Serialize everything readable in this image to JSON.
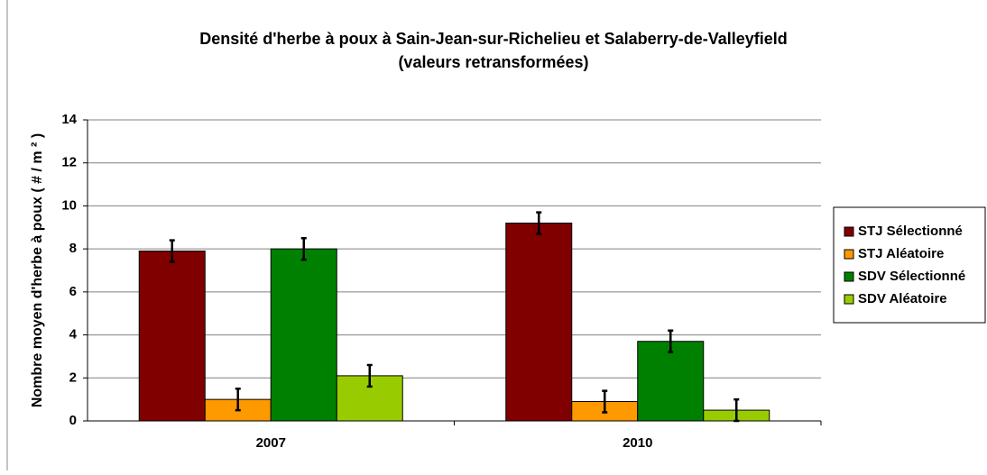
{
  "chart_data": {
    "type": "bar",
    "title": "Densité d'herbe à poux à Sain-Jean-sur-Richelieu et Salaberry-de-Valleyfield",
    "subtitle": "(valeurs retransformées)",
    "y_label": "Nombre moyen d'herbe à poux ( # / m ² )",
    "categories": [
      "2007",
      "2010"
    ],
    "series": [
      {
        "name": "STJ Sélectionné",
        "color": "#800000",
        "values": [
          7.9,
          9.2
        ],
        "errors": [
          0.5,
          0.5
        ]
      },
      {
        "name": "STJ Aléatoire",
        "color": "#ff9900",
        "values": [
          1.0,
          0.9
        ],
        "errors": [
          0.5,
          0.5
        ]
      },
      {
        "name": "SDV Sélectionné",
        "color": "#008000",
        "values": [
          8.0,
          3.7
        ],
        "errors": [
          0.5,
          0.5
        ]
      },
      {
        "name": "SDV Aléatoire",
        "color": "#99cc00",
        "values": [
          2.1,
          0.5
        ],
        "errors": [
          0.5,
          0.5
        ]
      }
    ],
    "ylim": [
      0,
      14
    ],
    "yticks": [
      0,
      2,
      4,
      6,
      8,
      10,
      12,
      14
    ],
    "grid": true,
    "legend": "right"
  }
}
